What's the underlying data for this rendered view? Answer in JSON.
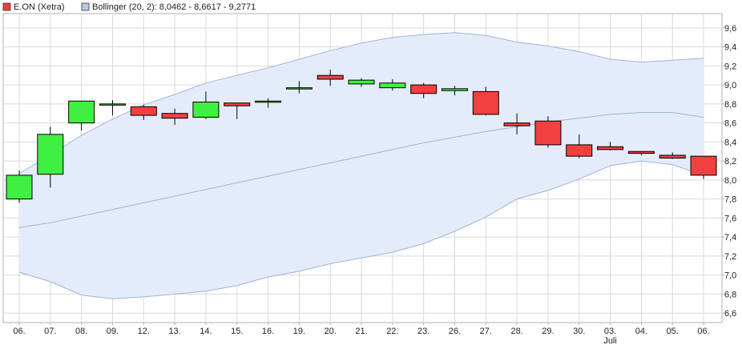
{
  "colors": {
    "up": "#40f040",
    "down": "#f04040",
    "band_fill": "#e4ecfb",
    "band_line": "#9fb4d6",
    "grid": "#d9d9d9",
    "frame": "#b0b0b0"
  },
  "chart_data": {
    "type": "candlestick",
    "legend": [
      {
        "label": "E.ON (Xetra)",
        "color": "#f04040"
      },
      {
        "label": "Bollinger (20, 2): 8,0462 - 8,6617 - 9,2771",
        "color": "#b8c8e8"
      }
    ],
    "legend_placement": "top-left",
    "categories": [
      "06.",
      "07.",
      "08.",
      "09.",
      "12.",
      "13.",
      "14.",
      "15.",
      "16.",
      "19.",
      "20.",
      "21.",
      "22.",
      "23.",
      "26.",
      "27.",
      "28.",
      "29.",
      "30.",
      "03.",
      "04.",
      "05.",
      "06."
    ],
    "month_labels": [
      {
        "index": 19,
        "label": "Juli"
      }
    ],
    "ylim": [
      6.5,
      9.75
    ],
    "yticks": [
      "6,6",
      "6,8",
      "7,0",
      "7,2",
      "7,4",
      "7,6",
      "7,8",
      "8,0",
      "8,2",
      "8,4",
      "8,6",
      "8,8",
      "9,0",
      "9,2",
      "9,4",
      "9,6"
    ],
    "ytick_values": [
      6.6,
      6.8,
      7.0,
      7.2,
      7.4,
      7.6,
      7.8,
      8.0,
      8.2,
      8.4,
      8.6,
      8.8,
      9.0,
      9.2,
      9.4,
      9.6
    ],
    "grid": true,
    "y_axis_side": "right",
    "ohlc": [
      {
        "o": 7.8,
        "h": 8.1,
        "l": 7.76,
        "c": 8.05
      },
      {
        "o": 8.06,
        "h": 8.56,
        "l": 7.92,
        "c": 8.48
      },
      {
        "o": 8.6,
        "h": 8.83,
        "l": 8.52,
        "c": 8.83
      },
      {
        "o": 8.8,
        "h": 8.84,
        "l": 8.68,
        "c": 8.8
      },
      {
        "o": 8.77,
        "h": 8.79,
        "l": 8.63,
        "c": 8.68
      },
      {
        "o": 8.7,
        "h": 8.75,
        "l": 8.58,
        "c": 8.65
      },
      {
        "o": 8.66,
        "h": 8.93,
        "l": 8.64,
        "c": 8.82
      },
      {
        "o": 8.81,
        "h": 8.81,
        "l": 8.64,
        "c": 8.78
      },
      {
        "o": 8.83,
        "h": 8.86,
        "l": 8.76,
        "c": 8.83
      },
      {
        "o": 8.97,
        "h": 9.04,
        "l": 8.91,
        "c": 8.97
      },
      {
        "o": 9.1,
        "h": 9.16,
        "l": 8.99,
        "c": 9.06
      },
      {
        "o": 9.01,
        "h": 9.07,
        "l": 8.98,
        "c": 9.05
      },
      {
        "o": 8.97,
        "h": 9.06,
        "l": 8.94,
        "c": 9.02
      },
      {
        "o": 9.0,
        "h": 9.02,
        "l": 8.86,
        "c": 8.91
      },
      {
        "o": 8.94,
        "h": 8.99,
        "l": 8.89,
        "c": 8.96
      },
      {
        "o": 8.93,
        "h": 8.98,
        "l": 8.68,
        "c": 8.69
      },
      {
        "o": 8.6,
        "h": 8.7,
        "l": 8.48,
        "c": 8.57
      },
      {
        "o": 8.62,
        "h": 8.67,
        "l": 8.34,
        "c": 8.37
      },
      {
        "o": 8.37,
        "h": 8.48,
        "l": 8.23,
        "c": 8.25
      },
      {
        "o": 8.35,
        "h": 8.4,
        "l": 8.31,
        "c": 8.32
      },
      {
        "o": 8.3,
        "h": 8.3,
        "l": 8.26,
        "c": 8.28
      },
      {
        "o": 8.26,
        "h": 8.29,
        "l": 8.22,
        "c": 8.23
      },
      {
        "o": 8.25,
        "h": 8.25,
        "l": 8.01,
        "c": 8.05
      }
    ],
    "bollinger": {
      "upper": [
        7.5,
        7.55,
        7.62,
        7.69,
        7.76,
        7.83,
        7.9,
        7.97,
        8.04,
        8.11,
        8.18,
        8.25,
        8.32,
        8.39,
        8.45,
        8.51,
        8.56,
        8.61,
        8.65,
        8.69,
        8.71,
        8.71,
        8.66
      ],
      "middle": [
        7.5,
        7.55,
        7.62,
        7.69,
        7.76,
        7.83,
        7.9,
        7.97,
        8.04,
        8.11,
        8.18,
        8.25,
        8.32,
        8.39,
        8.45,
        8.51,
        8.56,
        8.61,
        8.65,
        8.69,
        8.71,
        8.71,
        8.66
      ],
      "band_upper": [
        8.07,
        8.26,
        8.47,
        8.64,
        8.79,
        8.9,
        9.02,
        9.1,
        9.18,
        9.27,
        9.36,
        9.44,
        9.5,
        9.53,
        9.55,
        9.52,
        9.45,
        9.41,
        9.35,
        9.27,
        9.24,
        9.26,
        9.28
      ],
      "band_lower": [
        7.03,
        6.93,
        6.79,
        6.75,
        6.77,
        6.8,
        6.83,
        6.89,
        6.98,
        7.04,
        7.12,
        7.18,
        7.24,
        7.33,
        7.46,
        7.61,
        7.8,
        7.89,
        8.01,
        8.15,
        8.2,
        8.16,
        8.05
      ]
    }
  }
}
